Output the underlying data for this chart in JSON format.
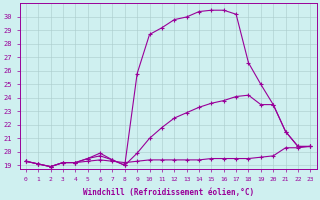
{
  "xlabel": "Windchill (Refroidissement éolien,°C)",
  "bg_color": "#cff0f0",
  "line_color": "#990099",
  "grid_color": "#aacccc",
  "x_ticks": [
    0,
    1,
    2,
    3,
    4,
    5,
    6,
    7,
    8,
    9,
    10,
    11,
    12,
    13,
    14,
    15,
    16,
    17,
    18,
    19,
    20,
    21,
    22,
    23
  ],
  "y_ticks": [
    19,
    20,
    21,
    22,
    23,
    24,
    25,
    26,
    27,
    28,
    29,
    30
  ],
  "ylim": [
    18.7,
    31.0
  ],
  "xlim": [
    -0.5,
    23.5
  ],
  "series": [
    {
      "x": [
        0,
        1,
        2,
        3,
        4,
        5,
        6,
        7,
        8,
        9,
        10,
        11,
        12,
        13,
        14,
        15,
        16,
        17,
        18,
        19,
        20,
        21,
        22,
        23
      ],
      "y": [
        19.3,
        19.1,
        18.9,
        19.2,
        19.2,
        19.3,
        19.4,
        19.3,
        19.2,
        19.3,
        19.4,
        19.4,
        19.4,
        19.4,
        19.4,
        19.5,
        19.5,
        19.5,
        19.5,
        19.6,
        19.7,
        20.3,
        20.3,
        20.4
      ]
    },
    {
      "x": [
        0,
        1,
        2,
        3,
        4,
        5,
        6,
        7,
        8,
        9,
        10,
        11,
        12,
        13,
        14,
        15,
        16,
        17,
        18,
        19,
        20,
        21,
        22,
        23
      ],
      "y": [
        19.3,
        19.1,
        18.9,
        19.2,
        19.2,
        19.5,
        19.7,
        19.4,
        19.0,
        19.9,
        21.0,
        21.8,
        22.5,
        22.9,
        23.3,
        23.6,
        23.8,
        24.1,
        24.2,
        23.5,
        23.5,
        21.5,
        20.4,
        20.4
      ]
    },
    {
      "x": [
        0,
        1,
        2,
        3,
        4,
        5,
        6,
        7,
        8,
        9,
        10,
        11,
        12,
        13,
        14,
        15,
        16,
        17,
        18,
        19,
        20,
        21,
        22,
        23
      ],
      "y": [
        19.3,
        19.1,
        18.9,
        19.2,
        19.2,
        19.5,
        19.9,
        19.4,
        19.0,
        25.8,
        28.7,
        29.2,
        29.8,
        30.0,
        30.4,
        30.5,
        30.5,
        30.2,
        26.6,
        25.0,
        23.5,
        21.5,
        20.4,
        20.4
      ]
    }
  ]
}
